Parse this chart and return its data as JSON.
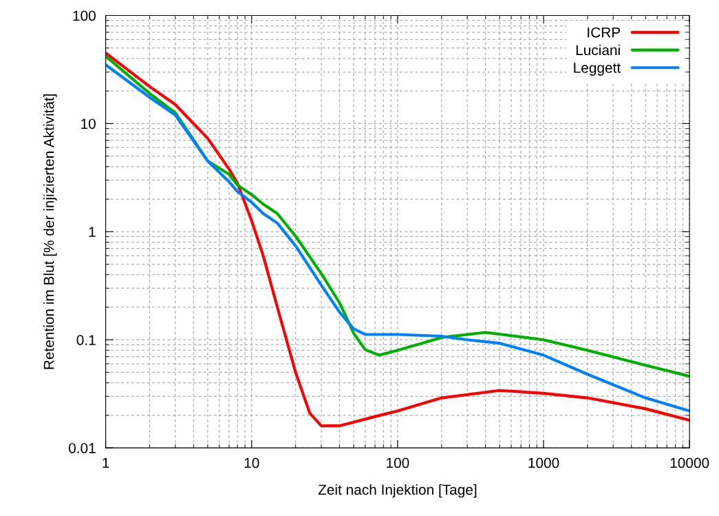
{
  "chart_data": {
    "type": "line",
    "xlabel": "Zeit nach Injektion [Tage]",
    "ylabel": "Retention im Blut [% der injizierten Aktivität]",
    "log": "xy",
    "grid": true,
    "legend": "top right",
    "marker": "none",
    "line_style": "solid",
    "xlim": [
      1,
      10000
    ],
    "xticks": [
      1,
      10,
      100,
      1000,
      10000
    ],
    "ylim": [
      0.01,
      100
    ],
    "yticks": [
      0.01,
      0.1,
      1,
      10,
      100
    ],
    "series": [
      {
        "name": "ICRP",
        "color": "#ff0000",
        "x": [
          1,
          2,
          3,
          5,
          7,
          8,
          10,
          12,
          15,
          20,
          25,
          30,
          40,
          70,
          100,
          200,
          500,
          1000,
          2000,
          5000,
          10000
        ],
        "values": [
          45,
          22,
          15,
          7.3,
          3.8,
          2.8,
          1.26,
          0.6,
          0.2,
          0.05,
          0.021,
          0.016,
          0.016,
          0.0195,
          0.022,
          0.029,
          0.034,
          0.032,
          0.029,
          0.023,
          0.018
        ]
      },
      {
        "name": "Luciani",
        "color": "#00b000",
        "x": [
          1,
          2,
          3,
          5,
          7,
          8,
          10,
          12,
          15,
          20,
          30,
          40,
          50,
          60,
          75,
          100,
          200,
          400,
          1000,
          2000,
          5000,
          10000
        ],
        "values": [
          42,
          19,
          12.6,
          4.5,
          3.4,
          2.7,
          2.2,
          1.8,
          1.47,
          0.91,
          0.41,
          0.22,
          0.115,
          0.081,
          0.072,
          0.08,
          0.105,
          0.117,
          0.1,
          0.08,
          0.058,
          0.046
        ]
      },
      {
        "name": "Leggett",
        "color": "#0080ff",
        "x": [
          1,
          2,
          3,
          5,
          7,
          8,
          10,
          12,
          15,
          20,
          30,
          40,
          50,
          60,
          100,
          200,
          300,
          500,
          1000,
          2000,
          5000,
          10000
        ],
        "values": [
          35,
          17.5,
          12,
          4.5,
          2.9,
          2.35,
          1.87,
          1.47,
          1.2,
          0.74,
          0.32,
          0.18,
          0.126,
          0.112,
          0.112,
          0.108,
          0.1,
          0.093,
          0.072,
          0.048,
          0.029,
          0.022
        ]
      }
    ]
  }
}
